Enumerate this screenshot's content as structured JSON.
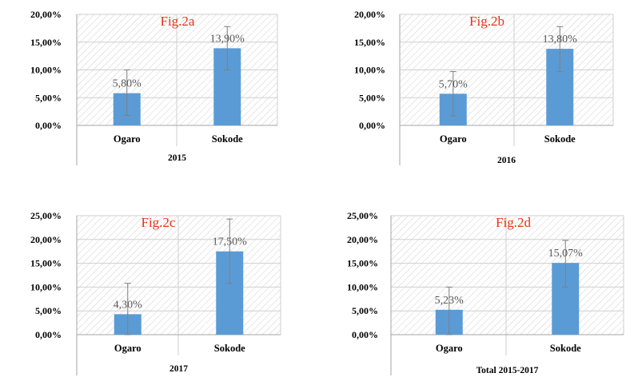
{
  "chart_data": [
    {
      "type": "bar",
      "title": "Fig.2a",
      "categories": [
        "Ogaro",
        "Sokode"
      ],
      "group_label": "2015",
      "values": [
        5.8,
        13.9
      ],
      "value_labels": [
        "5,80%",
        "13,90%"
      ],
      "error_bars": [
        [
          1.8,
          10.0
        ],
        [
          10.0,
          17.8
        ]
      ],
      "ylim": [
        0,
        20
      ],
      "yticks": [
        "0,00%",
        "5,00%",
        "10,00%",
        "15,00%",
        "20,00%"
      ],
      "bar_color": "#5b9bd5",
      "grid": true
    },
    {
      "type": "bar",
      "title": "Fig.2b",
      "categories": [
        "Ogaro",
        "Sokode"
      ],
      "group_label": "2016",
      "values": [
        5.7,
        13.8
      ],
      "value_labels": [
        "5,70%",
        "13,80%"
      ],
      "error_bars": [
        [
          1.7,
          9.7
        ],
        [
          9.7,
          17.8
        ]
      ],
      "ylim": [
        0,
        20
      ],
      "yticks": [
        "0,00%",
        "5,00%",
        "10,00%",
        "15,00%",
        "20,00%"
      ],
      "bar_color": "#5b9bd5",
      "grid": true
    },
    {
      "type": "bar",
      "title": "Fig.2c",
      "categories": [
        "Ogaro",
        "Sokode"
      ],
      "group_label": "2017",
      "values": [
        4.3,
        17.5
      ],
      "value_labels": [
        "4,30%",
        "17,50%"
      ],
      "error_bars": [
        [
          0.0,
          10.8
        ],
        [
          10.8,
          24.3
        ]
      ],
      "ylim": [
        0,
        25
      ],
      "yticks": [
        "0,00%",
        "5,00%",
        "10,00%",
        "15,00%",
        "20,00%",
        "25,00%"
      ],
      "bar_color": "#5b9bd5",
      "grid": true
    },
    {
      "type": "bar",
      "title": "Fig.2d",
      "categories": [
        "Ogaro",
        "Sokode"
      ],
      "group_label": "Total 2015-2017",
      "values": [
        5.23,
        15.07
      ],
      "value_labels": [
        "5,23%",
        "15,07%"
      ],
      "error_bars": [
        [
          0.0,
          10.0
        ],
        [
          10.0,
          19.8
        ]
      ],
      "ylim": [
        0,
        25
      ],
      "yticks": [
        "0,00%",
        "5,00%",
        "10,00%",
        "15,00%",
        "20,00%",
        "25,00%"
      ],
      "bar_color": "#5b9bd5",
      "grid": true
    }
  ]
}
